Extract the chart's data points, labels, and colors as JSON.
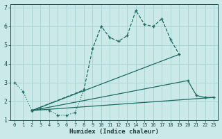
{
  "xlabel": "Humidex (Indice chaleur)",
  "bg_color": "#cce9ea",
  "grid_color": "#aad4d5",
  "line_color": "#1a6b60",
  "xlim": [
    -0.5,
    23.5
  ],
  "ylim": [
    1,
    7.2
  ],
  "xticks": [
    0,
    1,
    2,
    3,
    4,
    5,
    6,
    7,
    8,
    9,
    10,
    11,
    12,
    13,
    14,
    15,
    16,
    17,
    18,
    19,
    20,
    21,
    22,
    23
  ],
  "yticks": [
    1,
    2,
    3,
    4,
    5,
    6,
    7
  ],
  "series1_x": [
    0,
    1,
    2,
    3,
    4,
    5,
    6,
    7,
    8
  ],
  "series1_y": [
    3.0,
    2.5,
    1.5,
    1.6,
    1.5,
    1.25,
    1.25,
    1.4,
    2.6
  ],
  "series2_x": [
    2,
    8,
    9,
    10,
    11,
    12,
    13,
    14,
    15,
    16,
    17,
    18,
    19
  ],
  "series2_y": [
    1.5,
    2.6,
    4.8,
    6.0,
    5.4,
    5.2,
    5.5,
    6.85,
    6.1,
    6.0,
    6.4,
    5.3,
    4.5
  ],
  "series3_x": [
    2,
    23
  ],
  "series3_y": [
    1.5,
    2.2
  ],
  "series4_x": [
    2,
    20,
    21,
    22,
    23
  ],
  "series4_y": [
    1.5,
    3.1,
    2.3,
    2.2,
    2.2
  ],
  "series5_x": [
    2,
    19
  ],
  "series5_y": [
    1.5,
    4.5
  ]
}
